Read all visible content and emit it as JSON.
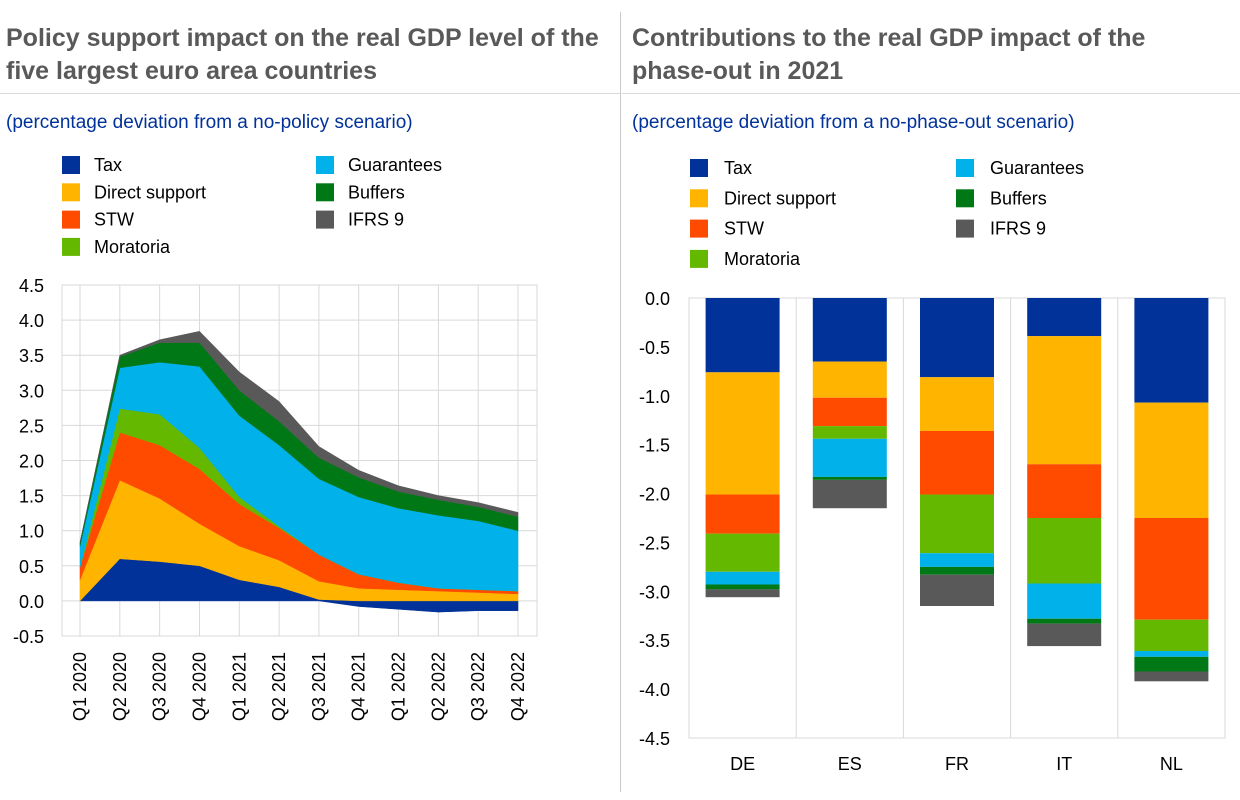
{
  "colors": {
    "Tax": "#003299",
    "Direct support": "#ffb400",
    "STW": "#ff4b00",
    "Moratoria": "#65b800",
    "Guarantees": "#00b1ea",
    "Buffers": "#007816",
    "IFRS 9": "#595959"
  },
  "chart_data": [
    {
      "type": "area",
      "stacked": true,
      "title": "Policy support impact on the real GDP level of the five largest euro area countries",
      "subtitle": "(percentage deviation from a no-policy scenario)",
      "legend": [
        "Tax",
        "Direct support",
        "STW",
        "Moratoria",
        "Guarantees",
        "Buffers",
        "IFRS 9"
      ],
      "categories": [
        "Q1 2020",
        "Q2 2020",
        "Q3 2020",
        "Q4 2020",
        "Q1 2021",
        "Q2 2021",
        "Q3 2021",
        "Q4 2021",
        "Q1 2022",
        "Q2 2022",
        "Q3 2022",
        "Q4 2022"
      ],
      "ylim": [
        -0.5,
        4.5
      ],
      "yticks": [
        "-0.5",
        "0.0",
        "0.5",
        "1.0",
        "1.5",
        "2.0",
        "2.5",
        "3.0",
        "3.5",
        "4.0",
        "4.5"
      ],
      "grid": true,
      "series": [
        {
          "name": "Tax",
          "values": [
            0.0,
            0.6,
            0.56,
            0.5,
            0.3,
            0.2,
            0.02,
            -0.08,
            -0.12,
            -0.16,
            -0.14,
            -0.14
          ]
        },
        {
          "name": "Direct support",
          "values": [
            0.3,
            1.12,
            0.9,
            0.6,
            0.48,
            0.38,
            0.26,
            0.18,
            0.16,
            0.14,
            0.12,
            0.1
          ]
        },
        {
          "name": "STW",
          "values": [
            0.18,
            0.68,
            0.76,
            0.78,
            0.6,
            0.46,
            0.38,
            0.2,
            0.1,
            0.04,
            0.04,
            0.04
          ]
        },
        {
          "name": "Moratoria",
          "values": [
            0.0,
            0.34,
            0.44,
            0.3,
            0.1,
            0.02,
            0.0,
            0.0,
            0.0,
            0.0,
            0.0,
            0.0
          ]
        },
        {
          "name": "Guarantees",
          "values": [
            0.3,
            0.58,
            0.74,
            1.16,
            1.16,
            1.16,
            1.08,
            1.1,
            1.06,
            1.04,
            0.98,
            0.86
          ]
        },
        {
          "name": "Buffers",
          "values": [
            0.05,
            0.16,
            0.28,
            0.34,
            0.36,
            0.34,
            0.3,
            0.28,
            0.24,
            0.22,
            0.2,
            0.2
          ]
        },
        {
          "name": "IFRS 9",
          "values": [
            0.0,
            0.02,
            0.04,
            0.16,
            0.26,
            0.28,
            0.16,
            0.1,
            0.08,
            0.06,
            0.06,
            0.06
          ]
        }
      ]
    },
    {
      "type": "bar",
      "stacked": true,
      "title": "Contributions to the real GDP impact of the phase-out in 2021",
      "subtitle": "(percentage deviation from a no-phase-out scenario)",
      "legend": [
        "Tax",
        "Direct support",
        "STW",
        "Moratoria",
        "Guarantees",
        "Buffers",
        "IFRS 9"
      ],
      "categories": [
        "DE",
        "ES",
        "FR",
        "IT",
        "NL"
      ],
      "ylim": [
        -4.5,
        0.0
      ],
      "yticks": [
        "0.0",
        "-0.5",
        "-1.0",
        "-1.5",
        "-2.0",
        "-2.5",
        "-3.0",
        "-3.5",
        "-4.0",
        "-4.5"
      ],
      "grid": true,
      "series": [
        {
          "name": "Tax",
          "values": [
            -0.76,
            -0.65,
            -0.81,
            -0.39,
            -1.07
          ]
        },
        {
          "name": "Direct support",
          "values": [
            -1.25,
            -0.37,
            -0.55,
            -1.31,
            -1.18
          ]
        },
        {
          "name": "STW",
          "values": [
            -0.4,
            -0.29,
            -0.65,
            -0.55,
            -1.04
          ]
        },
        {
          "name": "Moratoria",
          "values": [
            -0.39,
            -0.13,
            -0.6,
            -0.67,
            -0.32
          ]
        },
        {
          "name": "Guarantees",
          "values": [
            -0.13,
            -0.39,
            -0.14,
            -0.36,
            -0.06
          ]
        },
        {
          "name": "Buffers",
          "values": [
            -0.05,
            -0.03,
            -0.08,
            -0.05,
            -0.15
          ]
        },
        {
          "name": "IFRS 9",
          "values": [
            -0.08,
            -0.29,
            -0.32,
            -0.23,
            -0.1
          ]
        }
      ]
    }
  ]
}
